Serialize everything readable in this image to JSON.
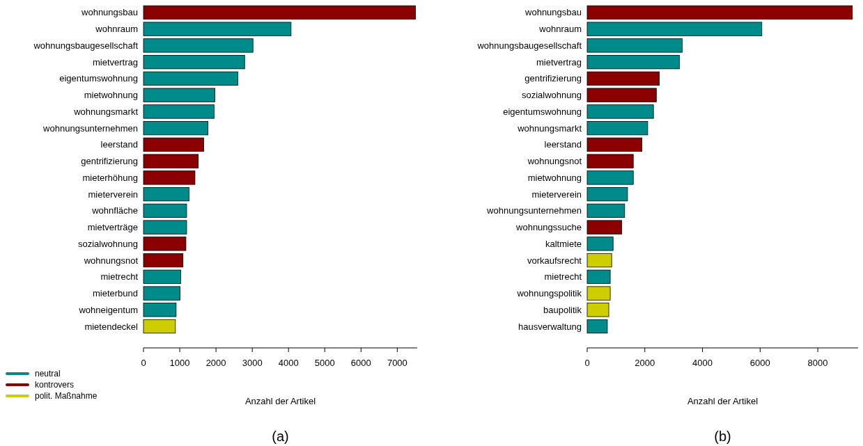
{
  "chart_data": [
    {
      "type": "bar",
      "orientation": "horizontal",
      "title": "(a)",
      "xlabel": "Anzahl der Artikel",
      "legend": "bottom left",
      "xlim": [
        0,
        7550
      ],
      "xticks": [
        0,
        1000,
        2000,
        3000,
        4000,
        5000,
        6000,
        7000
      ],
      "categories": [
        "wohnungsbau",
        "wohnraum",
        "wohnungsbaugesellschaft",
        "mietvertrag",
        "eigentumswohnung",
        "mietwohnung",
        "wohnungsmarkt",
        "wohnungsunternehmen",
        "leerstand",
        "gentrifizierung",
        "mieterhöhung",
        "mieterverein",
        "wohnfläche",
        "mietverträge",
        "sozialwohnung",
        "wohnungsnot",
        "mietrecht",
        "mieterbund",
        "wohneigentum",
        "mietendeckel"
      ],
      "series": [
        {
          "name": "neutral",
          "color": "#008b8b",
          "values": [
            null,
            4070,
            3020,
            2790,
            2600,
            1970,
            1950,
            1780,
            null,
            null,
            null,
            1260,
            1190,
            1190,
            null,
            null,
            1030,
            1010,
            900,
            null
          ]
        },
        {
          "name": "kontrovers",
          "color": "#8b0000",
          "values": [
            7500,
            null,
            null,
            null,
            null,
            null,
            null,
            null,
            1660,
            1510,
            1420,
            null,
            null,
            null,
            1170,
            1090,
            null,
            null,
            null,
            null
          ]
        },
        {
          "name": "polit. Maßnahme",
          "color": "#cdcd00",
          "values": [
            null,
            null,
            null,
            null,
            null,
            null,
            null,
            null,
            null,
            null,
            null,
            null,
            null,
            null,
            null,
            null,
            null,
            null,
            null,
            880
          ]
        }
      ]
    },
    {
      "type": "bar",
      "orientation": "horizontal",
      "title": "(b)",
      "xlabel": "Anzahl der Artikel",
      "xlim": [
        0,
        9400
      ],
      "xticks": [
        0,
        2000,
        4000,
        6000,
        8000
      ],
      "categories": [
        "wohnungsbau",
        "wohnraum",
        "wohnungsbaugesellschaft",
        "mietvertrag",
        "gentrifizierung",
        "sozialwohnung",
        "eigentumswohnung",
        "wohnungsmarkt",
        "leerstand",
        "wohnungsnot",
        "mietwohnung",
        "mieterverein",
        "wohnungsunternehmen",
        "wohnungssuche",
        "kaltmiete",
        "vorkaufsrecht",
        "mietrecht",
        "wohnungspolitik",
        "baupolitik",
        "hausverwaltung"
      ],
      "series": [
        {
          "color": "#008b8b",
          "values": [
            null,
            6060,
            3300,
            3200,
            null,
            null,
            2300,
            2100,
            null,
            null,
            1600,
            1400,
            1300,
            null,
            900,
            null,
            800,
            null,
            null,
            700
          ]
        },
        {
          "color": "#8b0000",
          "values": [
            9200,
            null,
            null,
            null,
            2500,
            2400,
            null,
            null,
            1900,
            1600,
            null,
            null,
            null,
            1200,
            null,
            null,
            null,
            null,
            null,
            null
          ]
        },
        {
          "color": "#cdcd00",
          "values": [
            null,
            null,
            null,
            null,
            null,
            null,
            null,
            null,
            null,
            null,
            null,
            null,
            null,
            null,
            null,
            850,
            null,
            800,
            750,
            null
          ]
        }
      ]
    }
  ]
}
